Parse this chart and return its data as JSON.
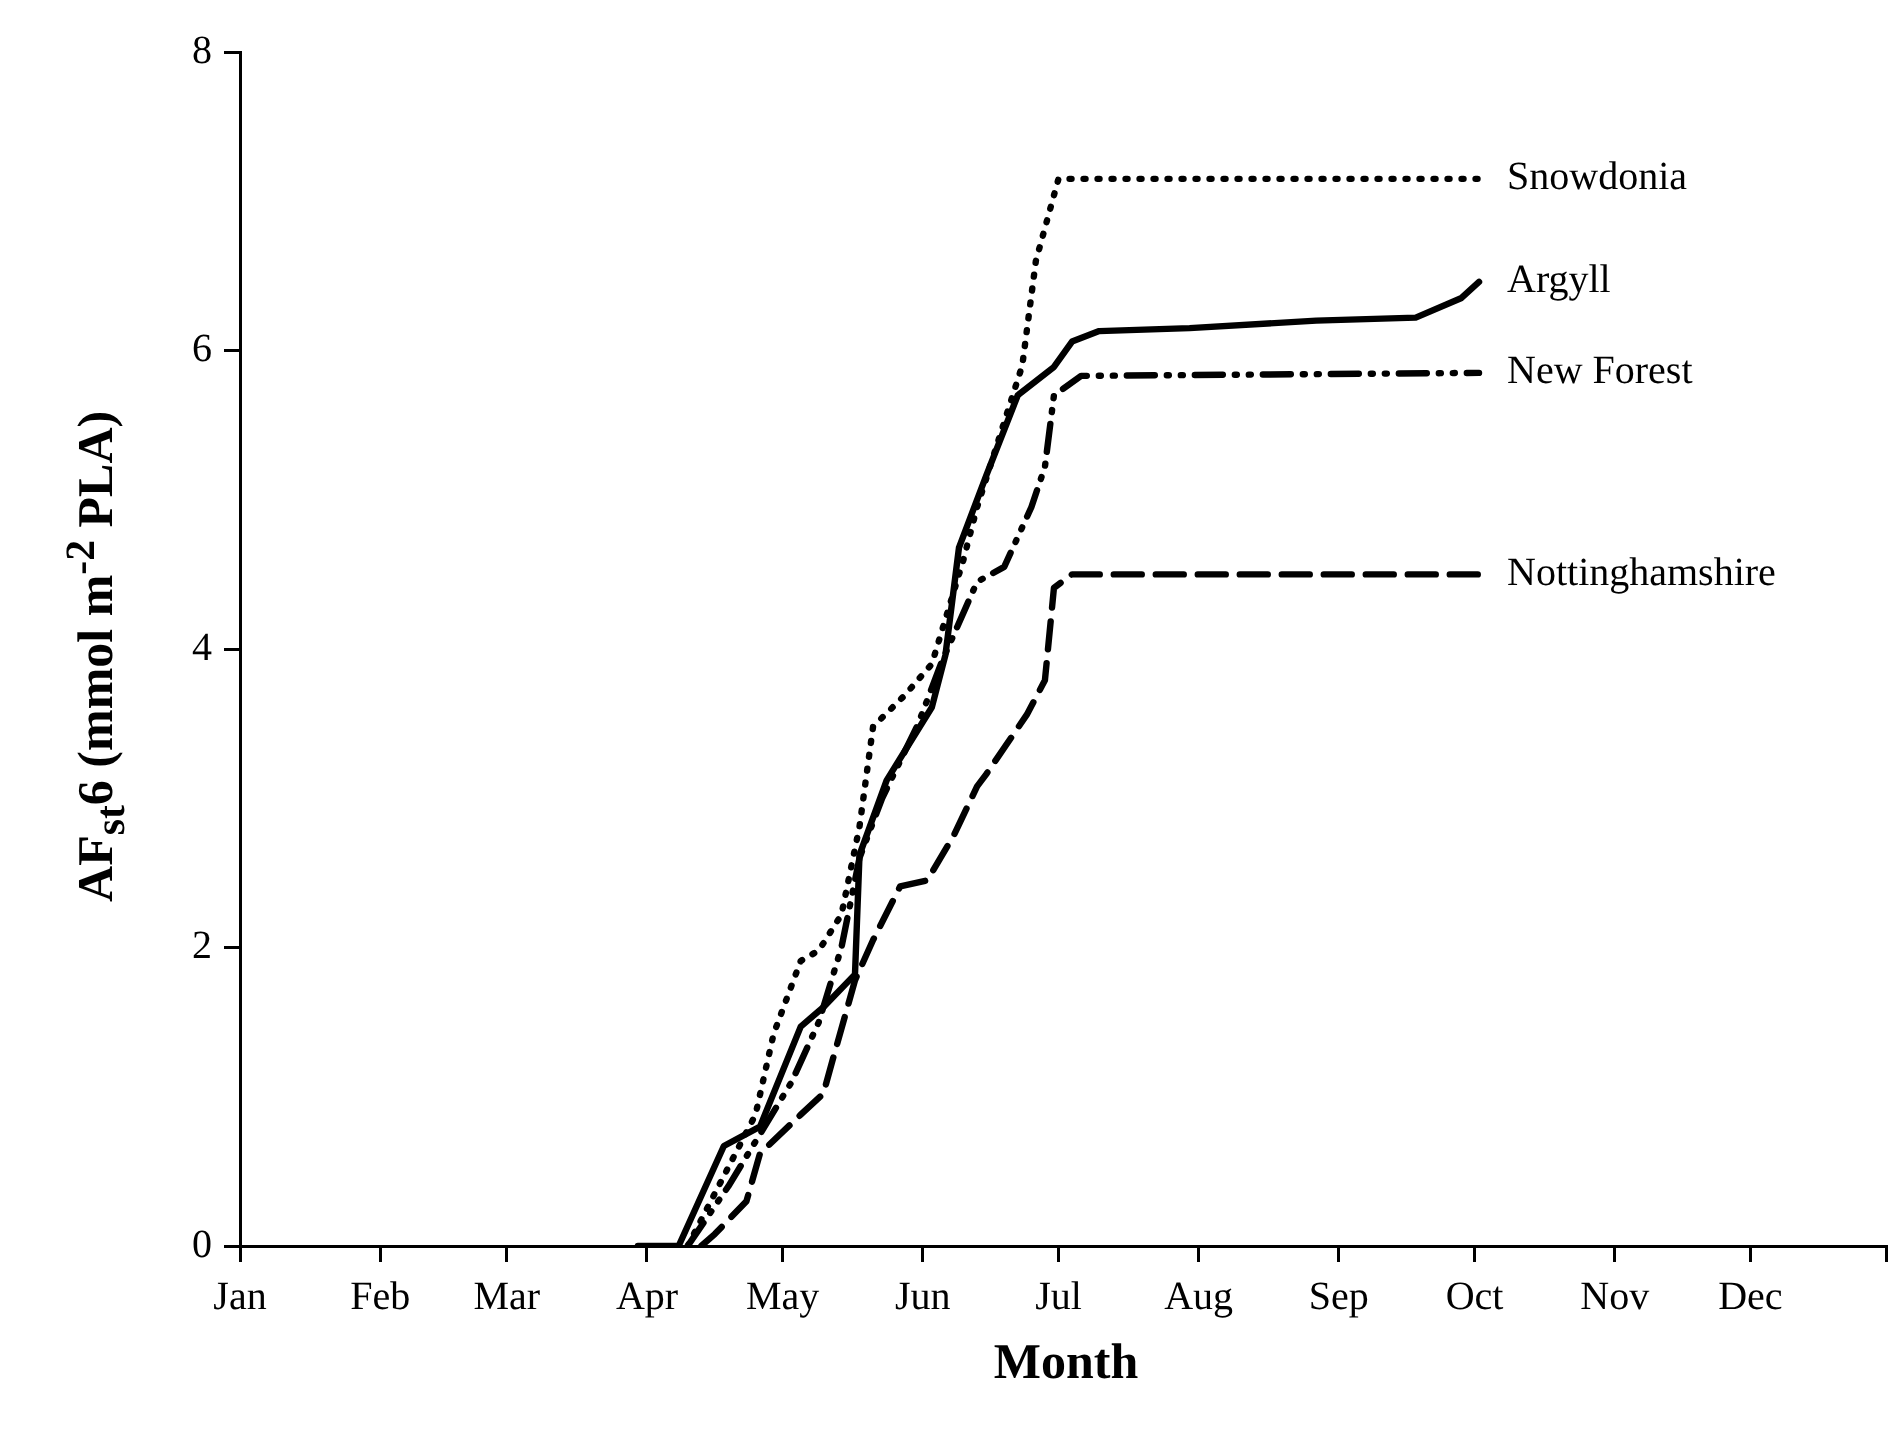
{
  "chart_data": {
    "type": "line",
    "xlabel": "Month",
    "ylabel": "AF$_{st}$6 (mmol m$^{-2}$ PLA)",
    "xlim": [
      "--01-01",
      "--12-31"
    ],
    "xticks": [
      {
        "value": "--01-01",
        "label": "Jan"
      },
      {
        "value": "--02-01",
        "label": "Feb"
      },
      {
        "value": "--03-01",
        "label": "Mar"
      },
      {
        "value": "--04-01",
        "label": "Apr"
      },
      {
        "value": "--05-01",
        "label": "May"
      },
      {
        "value": "--06-01",
        "label": "Jun"
      },
      {
        "value": "--07-01",
        "label": "Jul"
      },
      {
        "value": "--08-01",
        "label": "Aug"
      },
      {
        "value": "--09-01",
        "label": "Sep"
      },
      {
        "value": "--10-01",
        "label": "Oct"
      },
      {
        "value": "--11-01",
        "label": "Nov"
      },
      {
        "value": "--12-01",
        "label": "Dec"
      },
      {
        "value": "--12-31",
        "label": null
      }
    ],
    "ylim": [
      0,
      8
    ],
    "yticks": [
      0,
      2,
      4,
      6,
      8
    ],
    "grid": false,
    "legend": false,
    "marker": "none",
    "series": [
      {
        "name": "Snowdonia",
        "color": "#000000",
        "line_style": "dotted",
        "x": [
          "--04-10",
          "--04-25",
          "--04-29",
          "--05-05",
          "--05-09",
          "--05-14",
          "--05-18",
          "--05-21",
          "--05-28",
          "--06-03",
          "--06-10",
          "--06-13",
          "--06-23",
          "--06-26",
          "--07-01",
          "--10-02"
        ],
        "values": [
          0,
          0.88,
          1.42,
          1.91,
          1.98,
          2.22,
          2.81,
          3.48,
          3.69,
          3.9,
          4.6,
          4.95,
          5.9,
          6.6,
          7.15,
          7.15
        ]
      },
      {
        "name": "Argyll",
        "color": "#000000",
        "line_style": "solid",
        "x": [
          "--03-30",
          "--04-08",
          "--04-18",
          "--04-26",
          "--05-05",
          "--05-10",
          "--05-17",
          "--05-18",
          "--05-24",
          "--06-03",
          "--06-06",
          "--06-09",
          "--06-15",
          "--06-22",
          "--06-30",
          "--07-04",
          "--07-10",
          "--07-30",
          "--08-27",
          "--09-18",
          "--09-28",
          "--10-02"
        ],
        "values": [
          0,
          0,
          0.67,
          0.8,
          1.47,
          1.6,
          1.82,
          2.62,
          3.12,
          3.61,
          3.96,
          4.68,
          5.16,
          5.7,
          5.89,
          6.06,
          6.13,
          6.15,
          6.2,
          6.22,
          6.35,
          6.46
        ]
      },
      {
        "name": "New Forest",
        "color": "#000000",
        "line_style": "dashdot",
        "x": [
          "--04-10",
          "--04-19",
          "--04-26",
          "--05-03",
          "--05-09",
          "--05-14",
          "--05-18",
          "--05-23",
          "--05-31",
          "--06-05",
          "--06-13",
          "--06-19",
          "--06-25",
          "--06-28",
          "--06-30",
          "--07-06",
          "--10-02"
        ],
        "values": [
          0,
          0.4,
          0.75,
          1.1,
          1.5,
          2.0,
          2.6,
          3.0,
          3.5,
          3.9,
          4.45,
          4.55,
          4.95,
          5.22,
          5.7,
          5.83,
          5.85
        ]
      },
      {
        "name": "Nottinghamshire",
        "color": "#000000",
        "line_style": "dashed",
        "x": [
          "--04-13",
          "--04-16",
          "--04-23",
          "--04-26",
          "--05-05",
          "--05-10",
          "--05-12",
          "--05-17",
          "--05-21",
          "--05-27",
          "--06-02",
          "--06-08",
          "--06-13",
          "--06-15",
          "--06-24",
          "--06-28",
          "--06-30",
          "--07-04",
          "--10-02"
        ],
        "values": [
          0,
          0.08,
          0.3,
          0.62,
          0.88,
          1.02,
          1.24,
          1.78,
          2.05,
          2.41,
          2.45,
          2.76,
          3.08,
          3.16,
          3.56,
          3.79,
          4.41,
          4.5,
          4.5
        ]
      }
    ]
  }
}
